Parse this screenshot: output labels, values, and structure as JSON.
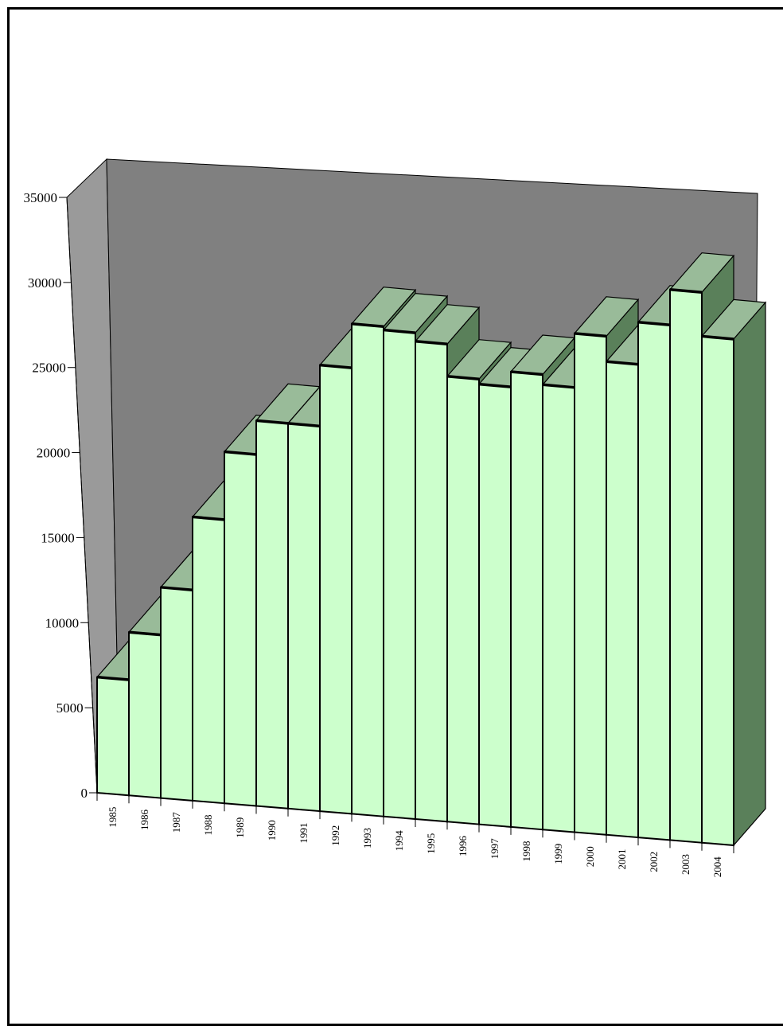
{
  "chart_data": {
    "type": "bar",
    "title": "",
    "xlabel": "",
    "ylabel": "",
    "categories": [
      "1985",
      "1986",
      "1987",
      "1988",
      "1989",
      "1990",
      "1991",
      "1992",
      "1993",
      "1994",
      "1995",
      "1996",
      "1997",
      "1998",
      "1999",
      "2000",
      "2001",
      "2002",
      "2003",
      "2004"
    ],
    "values": [
      6800,
      9600,
      12400,
      16700,
      20700,
      22700,
      22700,
      26300,
      28900,
      28700,
      28200,
      26300,
      26000,
      26900,
      26300,
      29500,
      28000,
      30500,
      32600,
      30000
    ],
    "ylim": [
      0,
      35000
    ],
    "yticks": [
      0,
      5000,
      10000,
      15000,
      20000,
      25000,
      30000,
      35000
    ],
    "grid": false,
    "legend": "none",
    "style": "3d",
    "colors": {
      "bar_front": "#ccffcc",
      "bar_top": "#99bb99",
      "bar_side": "#5a805a",
      "back_wall": "#808080",
      "side_wall": "#9a9a9a",
      "floor": "#777777",
      "outline": "#000000"
    }
  }
}
